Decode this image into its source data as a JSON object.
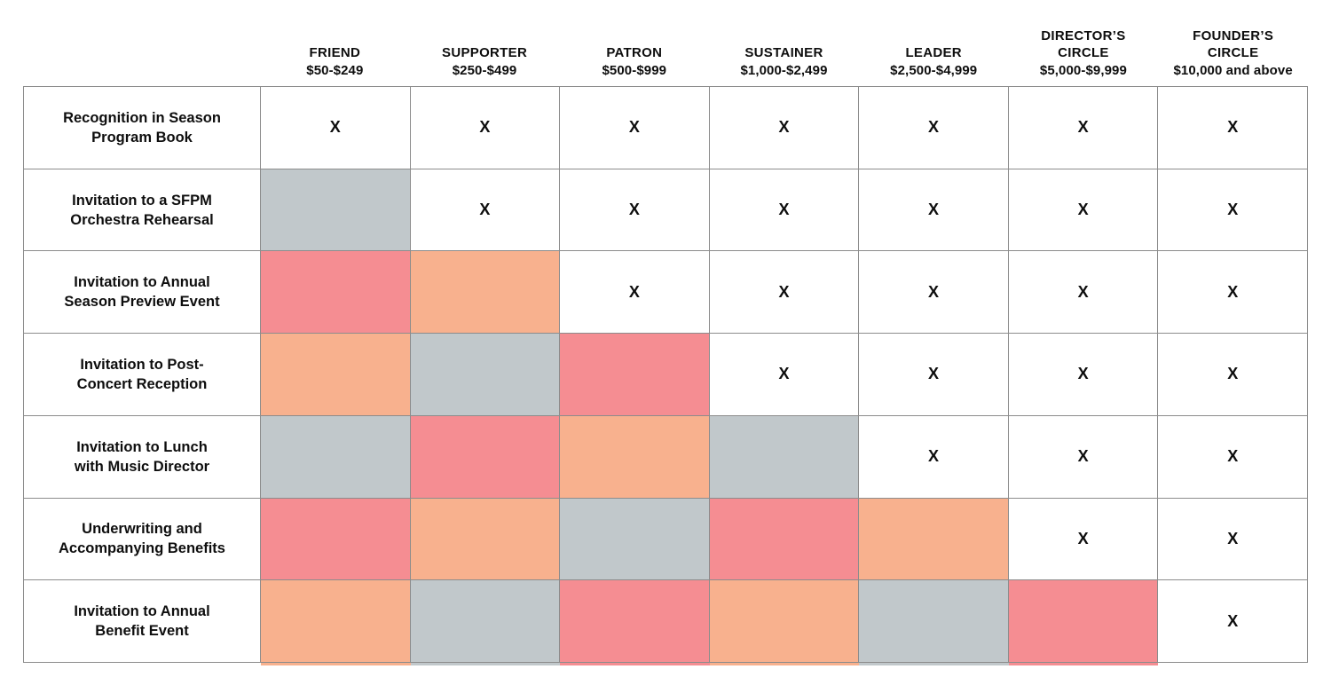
{
  "table": {
    "check_mark": "X",
    "columns": [
      {
        "name": "FRIEND",
        "range": "$50-$249"
      },
      {
        "name": "SUPPORTER",
        "range": "$250-$499"
      },
      {
        "name": "PATRON",
        "range": "$500-$999"
      },
      {
        "name": "SUSTAINER",
        "range": "$1,000-$2,499"
      },
      {
        "name": "LEADER",
        "range": "$2,500-$4,999"
      },
      {
        "name": "DIRECTOR’S\nCIRCLE",
        "range": "$5,000-$9,999"
      },
      {
        "name": "FOUNDER’S\nCIRCLE",
        "range": "$10,000 and above"
      }
    ],
    "rows": [
      {
        "label": "Recognition in Season\nProgram Book",
        "cells": [
          "x",
          "x",
          "x",
          "x",
          "x",
          "x",
          "x"
        ]
      },
      {
        "label": "Invitation to a SFPM\nOrchestra Rehearsal",
        "cells": [
          "gray",
          "x",
          "x",
          "x",
          "x",
          "x",
          "x"
        ]
      },
      {
        "label": "Invitation to Annual\nSeason Preview Event",
        "cells": [
          "salmon",
          "peach",
          "x",
          "x",
          "x",
          "x",
          "x"
        ]
      },
      {
        "label": "Invitation to Post-\nConcert Reception",
        "cells": [
          "peach",
          "gray",
          "salmon",
          "x",
          "x",
          "x",
          "x"
        ]
      },
      {
        "label": "Invitation to Lunch\nwith Music Director",
        "cells": [
          "gray",
          "salmon",
          "peach",
          "gray",
          "x",
          "x",
          "x"
        ]
      },
      {
        "label": "Underwriting and\nAccompanying Benefits",
        "cells": [
          "salmon",
          "peach",
          "gray",
          "salmon",
          "peach",
          "x",
          "x"
        ]
      },
      {
        "label": "Invitation to Annual\nBenefit Event",
        "cells": [
          "peach",
          "gray",
          "salmon",
          "peach",
          "gray",
          "salmon",
          "x"
        ]
      }
    ],
    "colors": {
      "salmon": "#F58D92",
      "peach": "#F8B18E",
      "gray": "#C1C8CB",
      "grid_line": "#8C8C8C",
      "text": "#0E0E0E"
    }
  }
}
